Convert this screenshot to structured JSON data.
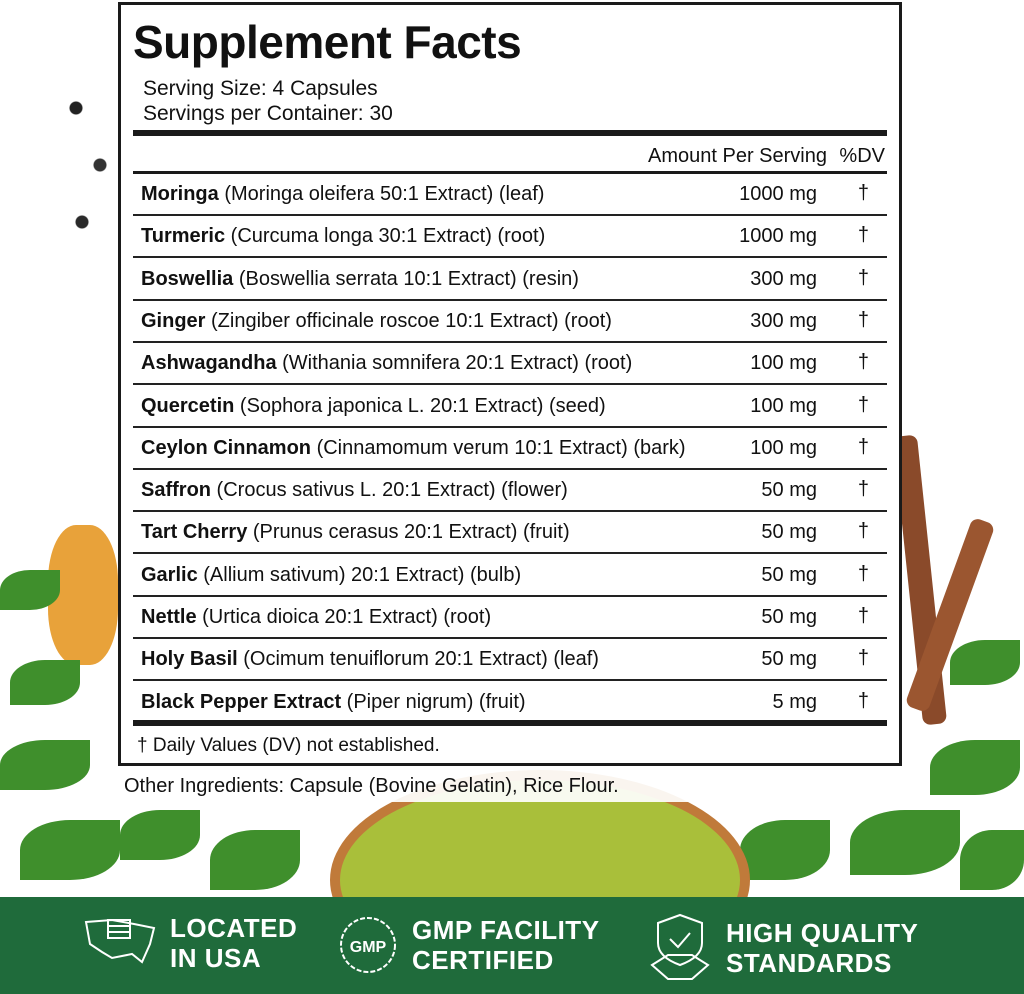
{
  "label": {
    "title": "Supplement Facts",
    "serving_size": "Serving Size: 4 Capsules",
    "servings_per_container": "Servings per Container: 30",
    "header_amount": "Amount Per Serving",
    "header_dv": "%DV",
    "rows": [
      {
        "name": "Moringa",
        "detail": " (Moringa oleifera 50:1 Extract) (leaf)",
        "amount": "1000 mg",
        "dv": "†"
      },
      {
        "name": "Turmeric",
        "detail": " (Curcuma longa 30:1 Extract) (root)",
        "amount": "1000 mg",
        "dv": "†"
      },
      {
        "name": "Boswellia",
        "detail": " (Boswellia serrata 10:1 Extract) (resin)",
        "amount": "300 mg",
        "dv": "†"
      },
      {
        "name": "Ginger",
        "detail": " (Zingiber officinale roscoe 10:1 Extract) (root)",
        "amount": "300 mg",
        "dv": "†"
      },
      {
        "name": "Ashwagandha",
        "detail": " (Withania somnifera 20:1 Extract) (root)",
        "amount": "100 mg",
        "dv": "†"
      },
      {
        "name": "Quercetin",
        "detail": " (Sophora japonica L. 20:1 Extract) (seed)",
        "amount": "100 mg",
        "dv": "†"
      },
      {
        "name": "Ceylon Cinnamon",
        "detail": " (Cinnamomum verum 10:1 Extract) (bark)",
        "amount": "100 mg",
        "dv": "†"
      },
      {
        "name": "Saffron",
        "detail": " (Crocus sativus L. 20:1 Extract) (flower)",
        "amount": "50 mg",
        "dv": "†"
      },
      {
        "name": "Tart Cherry",
        "detail": " (Prunus cerasus 20:1 Extract) (fruit)",
        "amount": "50 mg",
        "dv": "†"
      },
      {
        "name": "Garlic",
        "detail": " (Allium sativum) 20:1 Extract) (bulb)",
        "amount": "50 mg",
        "dv": "†"
      },
      {
        "name": "Nettle",
        "detail": " (Urtica dioica 20:1 Extract) (root)",
        "amount": "50 mg",
        "dv": "†"
      },
      {
        "name": "Holy Basil",
        "detail": " (Ocimum tenuiflorum 20:1 Extract) (leaf)",
        "amount": "50 mg",
        "dv": "†"
      },
      {
        "name": "Black Pepper Extract",
        "detail": " (Piper nigrum) (fruit)",
        "amount": "5 mg",
        "dv": "†"
      }
    ],
    "footnote": "† Daily Values (DV) not established."
  },
  "other_ingredients": "Other Ingredients: Capsule (Bovine Gelatin), Rice Flour.",
  "badges": [
    {
      "icon": "usa-map-flag-icon",
      "line1": "LOCATED",
      "line2": "IN USA"
    },
    {
      "icon": "gmp-seal-icon",
      "line1": "GMP FACILITY",
      "line2": "CERTIFIED",
      "seal_text": "GMP"
    },
    {
      "icon": "shield-handshake-icon",
      "line1": "HIGH QUALITY",
      "line2": "STANDARDS"
    }
  ],
  "colors": {
    "band": "#1f6b3b",
    "leaf": "#3f8f2c",
    "powder": "#a9bf3a"
  }
}
